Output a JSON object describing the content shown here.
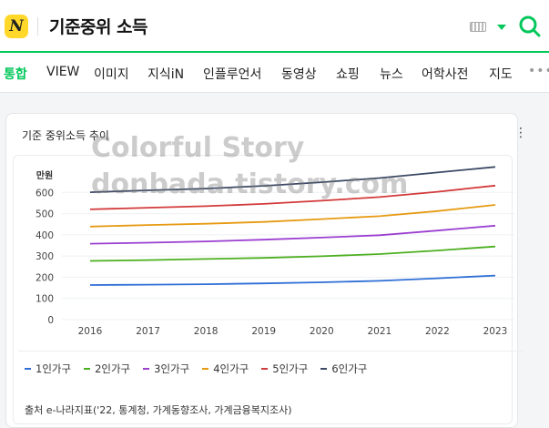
{
  "search": {
    "logo": "N",
    "query": "기준중위 소득"
  },
  "tabs": [
    {
      "label": "통합",
      "active": true
    },
    {
      "label": "VIEW"
    },
    {
      "label": "이미지"
    },
    {
      "label": "지식iN"
    },
    {
      "label": "인플루언서"
    },
    {
      "label": "동영상"
    },
    {
      "label": "쇼핑"
    },
    {
      "label": "뉴스"
    },
    {
      "label": "어학사전"
    },
    {
      "label": "지도"
    }
  ],
  "more_tabs": "•••",
  "card": {
    "title": "기준 중위소득 추이",
    "menu": "⋮",
    "source": "출처 e-나라지표('22, 통계청, 가계동향조사, 가계금융복지조사)"
  },
  "watermark": {
    "line1": "Colorful Story",
    "line2": "donbada.tistory.com"
  },
  "colors": {
    "accent": "#03c75a",
    "series": [
      "#2f6fd6",
      "#4caf1f",
      "#9b3fd1",
      "#e69a12",
      "#d33a3a",
      "#3c4a66"
    ]
  },
  "chart_data": {
    "type": "line",
    "ylabel": "만원",
    "ylim": [
      0,
      700
    ],
    "yticks": [
      0,
      100,
      200,
      300,
      400,
      500,
      600
    ],
    "x": [
      "2016",
      "2017",
      "2018",
      "2019",
      "2020",
      "2021",
      "2022",
      "2023"
    ],
    "grid": true,
    "legend": "bottom",
    "series": [
      {
        "name": "1인가구",
        "values": [
          163,
          165,
          167,
          171,
          176,
          183,
          195,
          208
        ]
      },
      {
        "name": "2인가구",
        "values": [
          277,
          281,
          286,
          291,
          299,
          309,
          326,
          345
        ]
      },
      {
        "name": "3인가구",
        "values": [
          358,
          363,
          369,
          377,
          387,
          398,
          420,
          443
        ]
      },
      {
        "name": "4인가구",
        "values": [
          439,
          446,
          452,
          461,
          474,
          488,
          512,
          541
        ]
      },
      {
        "name": "5인가구",
        "values": [
          520,
          528,
          535,
          546,
          561,
          578,
          603,
          632
        ]
      },
      {
        "name": "6인가구",
        "values": [
          601,
          610,
          618,
          631,
          648,
          668,
          694,
          720
        ]
      }
    ]
  }
}
